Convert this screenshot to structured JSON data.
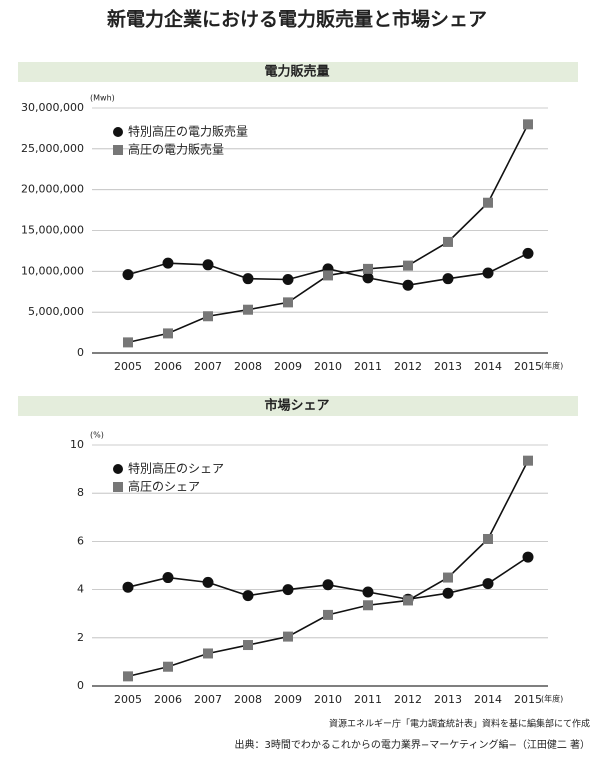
{
  "title": "新電力企業における電力販売量と市場シェア",
  "chart_data": [
    {
      "type": "line",
      "title": "電力販売量",
      "y_unit": "(Mwh)",
      "x_unit": "(年度)",
      "categories": [
        "2005",
        "2006",
        "2007",
        "2008",
        "2009",
        "2010",
        "2011",
        "2012",
        "2013",
        "2014",
        "2015"
      ],
      "series": [
        {
          "name": "特別高圧の電力販売量",
          "color": "#111111",
          "marker": "circle",
          "values": [
            9600000,
            11000000,
            10800000,
            9100000,
            9000000,
            10300000,
            9200000,
            8300000,
            9100000,
            9800000,
            12200000
          ]
        },
        {
          "name": "高圧の電力販売量",
          "color": "#777777",
          "marker": "square",
          "values": [
            1300000,
            2400000,
            4500000,
            5300000,
            6200000,
            9500000,
            10300000,
            10700000,
            13600000,
            18400000,
            28000000
          ]
        }
      ],
      "ylim": [
        0,
        30000000
      ],
      "yticks": [
        0,
        {
          "value": 5000000,
          "label": "5,000,000"
        },
        {
          "value": 10000000,
          "label": "10,000,000"
        },
        {
          "value": 15000000,
          "label": "15,000,000"
        },
        {
          "value": 20000000,
          "label": "20,000,000"
        },
        {
          "value": 25000000,
          "label": "25,000,000"
        },
        {
          "value": 30000000,
          "label": "30,000,000"
        }
      ],
      "grid": true
    },
    {
      "type": "line",
      "title": "市場シェア",
      "y_unit": "(%)",
      "x_unit": "(年度)",
      "categories": [
        "2005",
        "2006",
        "2007",
        "2008",
        "2009",
        "2010",
        "2011",
        "2012",
        "2013",
        "2014",
        "2015"
      ],
      "series": [
        {
          "name": "特別高圧のシェア",
          "color": "#111111",
          "marker": "circle",
          "values": [
            4.1,
            4.5,
            4.3,
            3.75,
            4.0,
            4.2,
            3.9,
            3.6,
            3.85,
            4.25,
            5.35
          ]
        },
        {
          "name": "高圧のシェア",
          "color": "#777777",
          "marker": "square",
          "values": [
            0.4,
            0.8,
            1.35,
            1.7,
            2.05,
            2.95,
            3.35,
            3.55,
            4.5,
            6.1,
            9.35
          ]
        }
      ],
      "ylim": [
        0,
        10
      ],
      "yticks": [
        0,
        2,
        4,
        6,
        8,
        10
      ],
      "grid": true
    }
  ],
  "notes": [
    "資源エネルギー庁「電力調査統計表」資料を基に編集部にて作成",
    "出典：3時間でわかるこれからの電力業界−マーケティング編−（江田健二 著）"
  ]
}
